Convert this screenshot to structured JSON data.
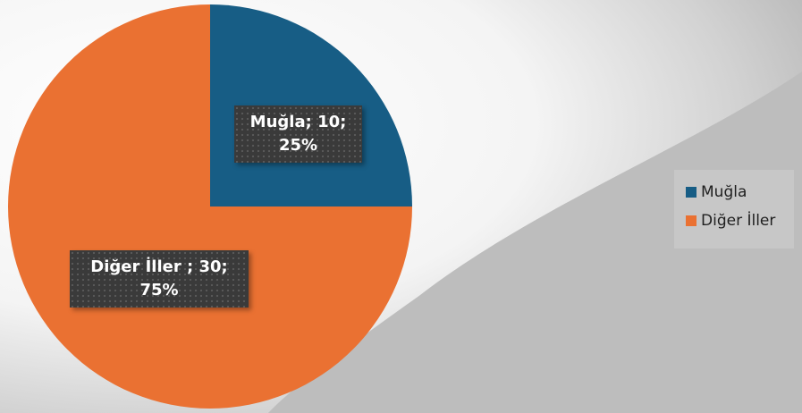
{
  "chart_data": {
    "type": "pie",
    "slices": [
      {
        "label": "Muğla",
        "value": 10,
        "percent": "25%",
        "color": "#175d85",
        "data_label_line1": "Muğla; 10;",
        "data_label_line2": "25%"
      },
      {
        "label": "Diğer İller",
        "value": 30,
        "percent": "75%",
        "color": "#ea7132",
        "data_label_line1": "Diğer İller ; 30;",
        "data_label_line2": "75%"
      }
    ],
    "start_angle_deg": 0,
    "legend_position": "right"
  },
  "legend": {
    "items": [
      {
        "label": "Muğla",
        "color": "#175d85"
      },
      {
        "label": "Diğer İller",
        "color": "#ea7132"
      }
    ]
  }
}
